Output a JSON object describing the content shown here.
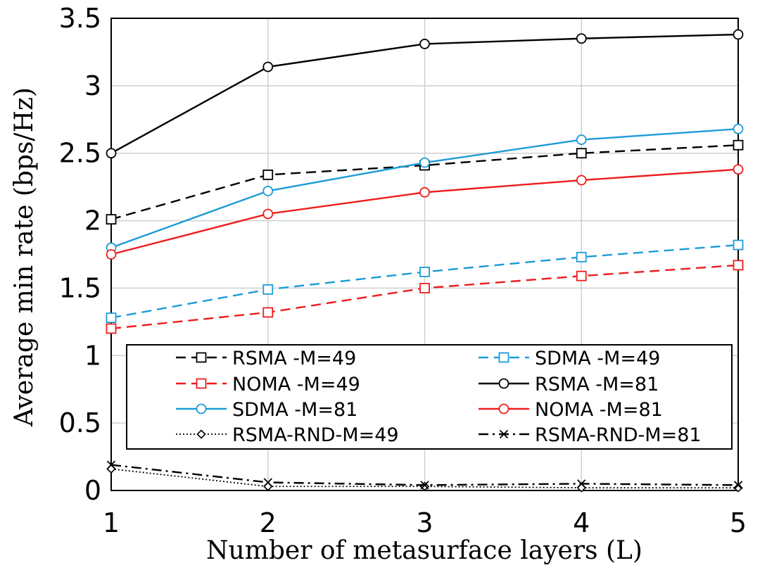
{
  "chart_data": {
    "type": "line",
    "title": "",
    "xlabel": "Number of metasurface layers (L)",
    "ylabel": "Average min rate (bps/Hz)",
    "x": [
      1,
      2,
      3,
      4,
      5
    ],
    "xticks": [
      "1",
      "2",
      "3",
      "4",
      "5"
    ],
    "xlim": [
      1,
      5
    ],
    "ylim": [
      0,
      3.5
    ],
    "yticks": [
      "0",
      "0.5",
      "1",
      "1.5",
      "2",
      "2.5",
      "3",
      "3.5"
    ],
    "grid": true,
    "legend_position": "lower-center",
    "series": [
      {
        "name": "RSMA -M=49",
        "values": [
          2.01,
          2.34,
          2.41,
          2.5,
          2.56
        ],
        "color": "#000000",
        "dash": "dashed",
        "marker": "square"
      },
      {
        "name": "SDMA -M=49",
        "values": [
          1.28,
          1.49,
          1.62,
          1.73,
          1.82
        ],
        "color": "#1b9bd7",
        "dash": "dashed",
        "marker": "square"
      },
      {
        "name": "NOMA -M=49",
        "values": [
          1.2,
          1.32,
          1.5,
          1.59,
          1.67
        ],
        "color": "#ee1c1c",
        "dash": "dashed",
        "marker": "square"
      },
      {
        "name": "RSMA -M=81",
        "values": [
          2.5,
          3.14,
          3.31,
          3.35,
          3.38
        ],
        "color": "#000000",
        "dash": "solid",
        "marker": "circle"
      },
      {
        "name": "SDMA -M=81",
        "values": [
          1.8,
          2.22,
          2.43,
          2.6,
          2.68
        ],
        "color": "#1b9bd7",
        "dash": "solid",
        "marker": "circle"
      },
      {
        "name": "NOMA -M=81",
        "values": [
          1.75,
          2.05,
          2.21,
          2.3,
          2.38
        ],
        "color": "#ee1c1c",
        "dash": "solid",
        "marker": "circle"
      },
      {
        "name": "RSMA-RND-M=49",
        "values": [
          0.16,
          0.03,
          0.03,
          0.02,
          0.02
        ],
        "color": "#000000",
        "dash": "dotted",
        "marker": "diamond"
      },
      {
        "name": "RSMA-RND-M=81",
        "values": [
          0.19,
          0.06,
          0.04,
          0.05,
          0.04
        ],
        "color": "#000000",
        "dash": "dashdot",
        "marker": "x"
      }
    ]
  }
}
